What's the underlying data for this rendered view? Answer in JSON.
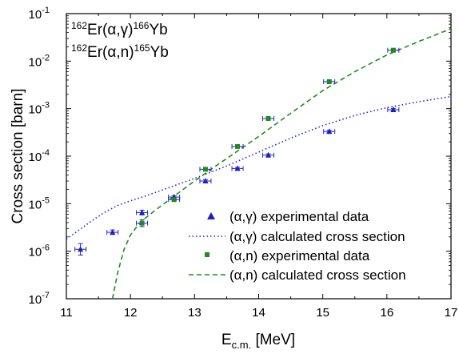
{
  "chart_data": {
    "type": "scatter",
    "xlabel_main": "E",
    "xlabel_sub": "c.m.",
    "xlabel_unit": " [MeV]",
    "ylabel": "Cross section [barn]",
    "xlim": [
      11,
      17
    ],
    "ylim_exp": [
      -7,
      -1
    ],
    "y_scale": "log",
    "x_ticks": [
      "11",
      "12",
      "13",
      "14",
      "15",
      "16",
      "17"
    ],
    "y_ticks": [
      {
        "exp": "-1",
        "value": -1
      },
      {
        "exp": "-2",
        "value": -2
      },
      {
        "exp": "-3",
        "value": -3
      },
      {
        "exp": "-4",
        "value": -4
      },
      {
        "exp": "-5",
        "value": -5
      },
      {
        "exp": "-6",
        "value": -6
      },
      {
        "exp": "-7",
        "value": -7
      }
    ],
    "y_tick_base": "10",
    "annotation_1": {
      "pre": "162",
      "a": "Er(",
      "b": "α,γ",
      "c": ")",
      "post": "166",
      "d": "Yb"
    },
    "annotation_2": {
      "pre": "162",
      "a": "Er(",
      "b": "α,n",
      "c": ")",
      "post": "165",
      "d": "Yb"
    },
    "colors": {
      "alpha_gamma": "#2222cc",
      "alpha_n": "#228b22",
      "errorbar": "#2222cc",
      "alpha_gamma_marker": "#1f1fbf",
      "alpha_n_marker": "#1f8a1f"
    },
    "series": [
      {
        "name": "(α,γ) experimental data",
        "kind": "points",
        "marker": "triangle",
        "points": [
          {
            "x": 11.22,
            "y": 1.1e-06,
            "yerr_lo": 8.3e-07,
            "yerr_hi": 1.45e-06
          },
          {
            "x": 11.72,
            "y": 2.5e-06,
            "yerr_lo": 2.25e-06,
            "yerr_hi": 2.8e-06
          },
          {
            "x": 12.18,
            "y": 6.5e-06,
            "yerr_lo": 5.8e-06,
            "yerr_hi": 7.3e-06
          },
          {
            "x": 12.68,
            "y": 1.38e-05,
            "yerr_lo": 1.28e-05,
            "yerr_hi": 1.48e-05
          },
          {
            "x": 13.17,
            "y": 3e-05,
            "yerr_lo": 2.8e-05,
            "yerr_hi": 3.2e-05
          },
          {
            "x": 13.67,
            "y": 5.5e-05,
            "yerr_lo": 5.15e-05,
            "yerr_hi": 5.85e-05
          },
          {
            "x": 14.15,
            "y": 0.000105,
            "yerr_lo": 9.8e-05,
            "yerr_hi": 0.000112
          },
          {
            "x": 15.1,
            "y": 0.00033,
            "yerr_lo": 0.00031,
            "yerr_hi": 0.00035
          },
          {
            "x": 16.1,
            "y": 0.00095,
            "yerr_lo": 0.00089,
            "yerr_hi": 0.00101
          }
        ]
      },
      {
        "name": "(α,γ) calculated cross section",
        "kind": "line",
        "style": "dotted",
        "points": [
          {
            "x": 11.0,
            "y": 1.8e-06
          },
          {
            "x": 11.2,
            "y": 2.8e-06
          },
          {
            "x": 11.4,
            "y": 4.4e-06
          },
          {
            "x": 11.6,
            "y": 6.6e-06
          },
          {
            "x": 11.8,
            "y": 9.2e-06
          },
          {
            "x": 12.0,
            "y": 1.15e-05
          },
          {
            "x": 12.2,
            "y": 1.4e-05
          },
          {
            "x": 12.5,
            "y": 1.95e-05
          },
          {
            "x": 13.0,
            "y": 3.4e-05
          },
          {
            "x": 13.5,
            "y": 6.2e-05
          },
          {
            "x": 14.0,
            "y": 0.000122
          },
          {
            "x": 14.5,
            "y": 0.00024
          },
          {
            "x": 15.0,
            "y": 0.00044
          },
          {
            "x": 15.5,
            "y": 0.00072
          },
          {
            "x": 16.0,
            "y": 0.00105
          },
          {
            "x": 16.5,
            "y": 0.0014
          },
          {
            "x": 17.0,
            "y": 0.0018
          }
        ]
      },
      {
        "name": "(α,n) experimental data",
        "kind": "points",
        "marker": "square",
        "points": [
          {
            "x": 12.18,
            "y": 3.9e-06,
            "yerr_lo": 3.3e-06,
            "yerr_hi": 4.6e-06
          },
          {
            "x": 12.68,
            "y": 1.22e-05,
            "yerr_lo": 1.12e-05,
            "yerr_hi": 1.32e-05
          },
          {
            "x": 13.17,
            "y": 5.3e-05,
            "yerr_lo": 4.95e-05,
            "yerr_hi": 5.65e-05
          },
          {
            "x": 13.67,
            "y": 0.00016,
            "yerr_lo": 0.00015,
            "yerr_hi": 0.00017
          },
          {
            "x": 14.15,
            "y": 0.00062,
            "yerr_lo": 0.00058,
            "yerr_hi": 0.00066
          },
          {
            "x": 15.1,
            "y": 0.0037,
            "yerr_lo": 0.00345,
            "yerr_hi": 0.00395
          },
          {
            "x": 16.1,
            "y": 0.017,
            "yerr_lo": 0.016,
            "yerr_hi": 0.018
          }
        ]
      },
      {
        "name": "(α,n) calculated cross section",
        "kind": "line",
        "style": "dashed",
        "points": [
          {
            "x": 11.72,
            "y": 1e-07
          },
          {
            "x": 11.8,
            "y": 3.5e-07
          },
          {
            "x": 11.9,
            "y": 1.1e-06
          },
          {
            "x": 12.0,
            "y": 2.2e-06
          },
          {
            "x": 12.1,
            "y": 3.3e-06
          },
          {
            "x": 12.2,
            "y": 4.6e-06
          },
          {
            "x": 12.4,
            "y": 7.5e-06
          },
          {
            "x": 12.6,
            "y": 1.2e-05
          },
          {
            "x": 12.8,
            "y": 1.9e-05
          },
          {
            "x": 13.0,
            "y": 3e-05
          },
          {
            "x": 13.3,
            "y": 5.8e-05
          },
          {
            "x": 13.6,
            "y": 0.00011
          },
          {
            "x": 14.0,
            "y": 0.00026
          },
          {
            "x": 14.5,
            "y": 0.0008
          },
          {
            "x": 15.0,
            "y": 0.0024
          },
          {
            "x": 15.5,
            "y": 0.006
          },
          {
            "x": 16.0,
            "y": 0.0135
          },
          {
            "x": 16.5,
            "y": 0.026
          },
          {
            "x": 17.0,
            "y": 0.048
          }
        ]
      }
    ]
  }
}
